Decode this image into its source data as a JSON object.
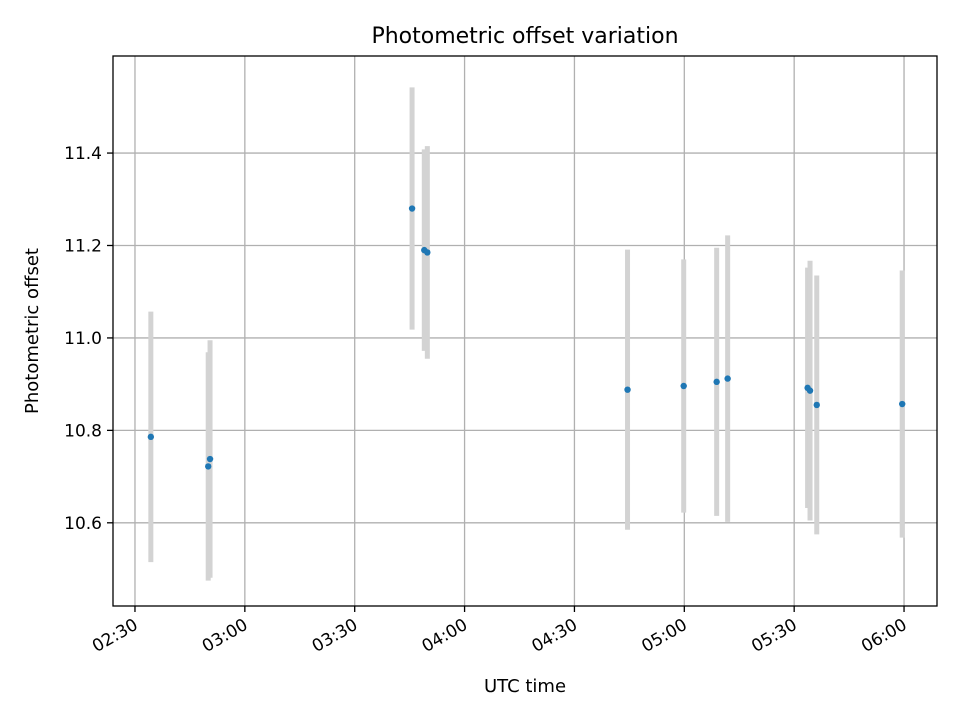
{
  "chart_data": {
    "type": "scatter",
    "title": "Photometric offset variation",
    "xlabel": "UTC time",
    "ylabel": "Photometric offset",
    "xlim": [
      "02:24",
      "06:09"
    ],
    "ylim": [
      10.42,
      11.61
    ],
    "x_ticks": [
      "02:30",
      "03:00",
      "03:30",
      "04:00",
      "04:30",
      "05:00",
      "05:30",
      "06:00"
    ],
    "y_ticks": [
      10.6,
      10.8,
      11.0,
      11.2,
      11.4
    ],
    "grid": true,
    "series": [
      {
        "marker_color": "#1f77b4",
        "errorbar_color": "#d3d3d3",
        "points": [
          {
            "time": "02:34:20",
            "value": 10.786,
            "err_low": 10.515,
            "err_high": 11.057
          },
          {
            "time": "02:50:00",
            "value": 10.722,
            "err_low": 10.475,
            "err_high": 10.969
          },
          {
            "time": "02:50:30",
            "value": 10.738,
            "err_low": 10.481,
            "err_high": 10.995
          },
          {
            "time": "03:45:40",
            "value": 11.28,
            "err_low": 11.018,
            "err_high": 11.542
          },
          {
            "time": "03:49:00",
            "value": 11.19,
            "err_low": 10.972,
            "err_high": 11.408
          },
          {
            "time": "03:49:50",
            "value": 11.185,
            "err_low": 10.955,
            "err_high": 11.415
          },
          {
            "time": "04:44:30",
            "value": 10.888,
            "err_low": 10.585,
            "err_high": 11.191
          },
          {
            "time": "04:59:50",
            "value": 10.896,
            "err_low": 10.622,
            "err_high": 11.17
          },
          {
            "time": "05:08:50",
            "value": 10.905,
            "err_low": 10.615,
            "err_high": 11.195
          },
          {
            "time": "05:11:50",
            "value": 10.912,
            "err_low": 10.602,
            "err_high": 11.222
          },
          {
            "time": "05:33:40",
            "value": 10.892,
            "err_low": 10.632,
            "err_high": 11.152
          },
          {
            "time": "05:34:20",
            "value": 10.886,
            "err_low": 10.605,
            "err_high": 11.167
          },
          {
            "time": "05:36:10",
            "value": 10.855,
            "err_low": 10.575,
            "err_high": 11.135
          },
          {
            "time": "05:59:30",
            "value": 10.857,
            "err_low": 10.568,
            "err_high": 11.146
          }
        ]
      }
    ]
  }
}
